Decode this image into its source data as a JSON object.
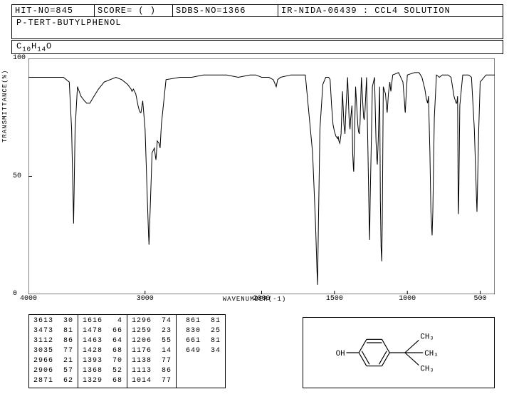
{
  "header": {
    "hit_no": "HIT-NO=845",
    "score": "SCORE=  ( )",
    "sdbs": "SDBS-NO=1366",
    "ir": "IR-NIDA-06439 : CCL4 SOLUTION",
    "compound": "P-TERT-BUTYLPHENOL"
  },
  "formula": {
    "text": "C",
    "s1": "10",
    "mid": "H",
    "s2": "14",
    "end": "O"
  },
  "chart": {
    "type": "line",
    "xlabel": "WAVENUMBER(-1)",
    "ylabel": "TRANSMITTANCE(%)",
    "xlim": [
      4000,
      400
    ],
    "ylim": [
      0,
      100
    ],
    "xticks": [
      4000,
      3000,
      2000,
      1500,
      1000,
      500
    ],
    "yticks": [
      0,
      50,
      100
    ],
    "line_color": "#000000",
    "background_color": "#ffffff",
    "axis_color": "#000000",
    "data": [
      [
        4000,
        92
      ],
      [
        3900,
        92
      ],
      [
        3800,
        92
      ],
      [
        3700,
        92
      ],
      [
        3650,
        90
      ],
      [
        3630,
        70
      ],
      [
        3613,
        30
      ],
      [
        3600,
        70
      ],
      [
        3580,
        88
      ],
      [
        3550,
        84
      ],
      [
        3520,
        82
      ],
      [
        3500,
        81
      ],
      [
        3473,
        81
      ],
      [
        3450,
        83
      ],
      [
        3400,
        87
      ],
      [
        3350,
        90
      ],
      [
        3300,
        91
      ],
      [
        3250,
        92
      ],
      [
        3200,
        91
      ],
      [
        3150,
        89
      ],
      [
        3120,
        87
      ],
      [
        3112,
        86
      ],
      [
        3100,
        87
      ],
      [
        3080,
        85
      ],
      [
        3060,
        80
      ],
      [
        3050,
        78
      ],
      [
        3040,
        77
      ],
      [
        3035,
        77
      ],
      [
        3020,
        82
      ],
      [
        3000,
        70
      ],
      [
        2980,
        40
      ],
      [
        2970,
        25
      ],
      [
        2966,
        21
      ],
      [
        2960,
        30
      ],
      [
        2940,
        60
      ],
      [
        2920,
        62
      ],
      [
        2910,
        58
      ],
      [
        2906,
        57
      ],
      [
        2895,
        65
      ],
      [
        2880,
        64
      ],
      [
        2871,
        62
      ],
      [
        2860,
        72
      ],
      [
        2820,
        91
      ],
      [
        2700,
        92
      ],
      [
        2600,
        92
      ],
      [
        2500,
        93
      ],
      [
        2400,
        93
      ],
      [
        2300,
        93
      ],
      [
        2200,
        92
      ],
      [
        2100,
        93
      ],
      [
        2050,
        93
      ],
      [
        2000,
        92
      ],
      [
        1950,
        92
      ],
      [
        1920,
        91
      ],
      [
        1900,
        88
      ],
      [
        1890,
        91
      ],
      [
        1870,
        92
      ],
      [
        1800,
        93
      ],
      [
        1700,
        93
      ],
      [
        1650,
        60
      ],
      [
        1630,
        30
      ],
      [
        1620,
        10
      ],
      [
        1616,
        4
      ],
      [
        1610,
        30
      ],
      [
        1600,
        70
      ],
      [
        1580,
        89
      ],
      [
        1560,
        92
      ],
      [
        1540,
        92
      ],
      [
        1530,
        91
      ],
      [
        1520,
        80
      ],
      [
        1510,
        72
      ],
      [
        1500,
        69
      ],
      [
        1490,
        67
      ],
      [
        1478,
        66
      ],
      [
        1475,
        67
      ],
      [
        1470,
        65
      ],
      [
        1463,
        64
      ],
      [
        1455,
        68
      ],
      [
        1445,
        86
      ],
      [
        1435,
        72
      ],
      [
        1428,
        68
      ],
      [
        1420,
        80
      ],
      [
        1410,
        92
      ],
      [
        1400,
        75
      ],
      [
        1395,
        71
      ],
      [
        1393,
        70
      ],
      [
        1390,
        74
      ],
      [
        1380,
        80
      ],
      [
        1375,
        60
      ],
      [
        1370,
        53
      ],
      [
        1368,
        52
      ],
      [
        1365,
        60
      ],
      [
        1355,
        88
      ],
      [
        1340,
        72
      ],
      [
        1335,
        69
      ],
      [
        1329,
        68
      ],
      [
        1325,
        72
      ],
      [
        1315,
        92
      ],
      [
        1305,
        80
      ],
      [
        1300,
        75
      ],
      [
        1296,
        74
      ],
      [
        1290,
        78
      ],
      [
        1280,
        92
      ],
      [
        1270,
        60
      ],
      [
        1262,
        30
      ],
      [
        1259,
        23
      ],
      [
        1255,
        40
      ],
      [
        1240,
        88
      ],
      [
        1225,
        92
      ],
      [
        1215,
        65
      ],
      [
        1210,
        58
      ],
      [
        1206,
        55
      ],
      [
        1200,
        65
      ],
      [
        1190,
        88
      ],
      [
        1185,
        40
      ],
      [
        1180,
        20
      ],
      [
        1176,
        14
      ],
      [
        1172,
        30
      ],
      [
        1165,
        88
      ],
      [
        1150,
        85
      ],
      [
        1142,
        79
      ],
      [
        1138,
        77
      ],
      [
        1130,
        85
      ],
      [
        1120,
        90
      ],
      [
        1115,
        87
      ],
      [
        1113,
        86
      ],
      [
        1110,
        88
      ],
      [
        1100,
        93
      ],
      [
        1060,
        94
      ],
      [
        1030,
        90
      ],
      [
        1020,
        82
      ],
      [
        1016,
        78
      ],
      [
        1014,
        77
      ],
      [
        1010,
        82
      ],
      [
        1000,
        93
      ],
      [
        950,
        94
      ],
      [
        920,
        94
      ],
      [
        900,
        92
      ],
      [
        880,
        87
      ],
      [
        870,
        83
      ],
      [
        865,
        82
      ],
      [
        861,
        81
      ],
      [
        855,
        84
      ],
      [
        845,
        60
      ],
      [
        838,
        35
      ],
      [
        832,
        27
      ],
      [
        830,
        25
      ],
      [
        825,
        35
      ],
      [
        815,
        75
      ],
      [
        800,
        93
      ],
      [
        780,
        92
      ],
      [
        760,
        93
      ],
      [
        740,
        93
      ],
      [
        720,
        93
      ],
      [
        700,
        92
      ],
      [
        680,
        84
      ],
      [
        670,
        82
      ],
      [
        665,
        81
      ],
      [
        661,
        81
      ],
      [
        655,
        84
      ],
      [
        652,
        50
      ],
      [
        650,
        36
      ],
      [
        649,
        34
      ],
      [
        647,
        40
      ],
      [
        640,
        80
      ],
      [
        620,
        93
      ],
      [
        600,
        93
      ],
      [
        580,
        93
      ],
      [
        560,
        92
      ],
      [
        540,
        70
      ],
      [
        530,
        50
      ],
      [
        525,
        40
      ],
      [
        522,
        35
      ],
      [
        520,
        40
      ],
      [
        510,
        70
      ],
      [
        500,
        90
      ],
      [
        460,
        93
      ],
      [
        420,
        93
      ],
      [
        400,
        93
      ]
    ]
  },
  "peak_table": {
    "columns": [
      [
        [
          "3613",
          "30"
        ],
        [
          "3473",
          "81"
        ],
        [
          "3112",
          "86"
        ],
        [
          "3035",
          "77"
        ],
        [
          "2966",
          "21"
        ],
        [
          "2906",
          "57"
        ],
        [
          "2871",
          "62"
        ]
      ],
      [
        [
          "1616",
          " 4"
        ],
        [
          "1478",
          "66"
        ],
        [
          "1463",
          "64"
        ],
        [
          "1428",
          "68"
        ],
        [
          "1393",
          "70"
        ],
        [
          "1368",
          "52"
        ],
        [
          "1329",
          "68"
        ]
      ],
      [
        [
          "1296",
          "74"
        ],
        [
          "1259",
          "23"
        ],
        [
          "1206",
          "55"
        ],
        [
          "1176",
          "14"
        ],
        [
          "1138",
          "77"
        ],
        [
          "1113",
          "86"
        ],
        [
          "1014",
          "77"
        ]
      ],
      [
        [
          "861",
          "81"
        ],
        [
          "830",
          "25"
        ],
        [
          "661",
          "81"
        ],
        [
          "649",
          "34"
        ],
        [
          "",
          ""
        ],
        [
          "",
          ""
        ],
        [
          "",
          ""
        ]
      ]
    ]
  },
  "molecule": {
    "oh_label": "OH",
    "ch3_labels": [
      "CH₃",
      "CH₃",
      "CH₃"
    ],
    "stroke": "#000000"
  }
}
